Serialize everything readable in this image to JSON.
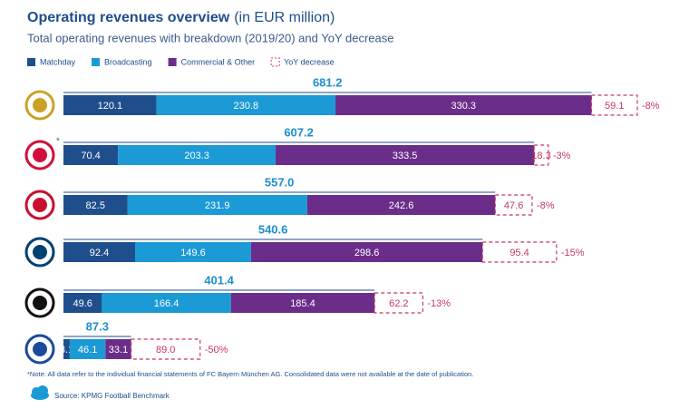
{
  "chart_data": {
    "type": "stacked_bar_horizontal",
    "title": "Operating revenues overview",
    "title_unit": "(in EUR million)",
    "subtitle": "Total operating revenues with breakdown (2019/20) and YoY decrease",
    "categories": [
      null,
      null,
      null,
      null,
      null,
      null
    ],
    "row_notes": [
      null,
      "*",
      null,
      null,
      null,
      null
    ],
    "series": [
      {
        "name": "Matchday",
        "color": "#1f4e8c",
        "values": [
          120.1,
          70.4,
          82.5,
          92.4,
          49.6,
          8.1
        ]
      },
      {
        "name": "Broadcasting",
        "color": "#1c9ad6",
        "values": [
          230.8,
          203.3,
          231.9,
          149.6,
          166.4,
          46.1
        ]
      },
      {
        "name": "Commercial & Other",
        "color": "#6b2d8a",
        "values": [
          330.3,
          333.5,
          242.6,
          298.6,
          185.4,
          33.1
        ]
      },
      {
        "name": "YoY decrease",
        "color": "#c8385f",
        "dashed": true,
        "values": [
          59.1,
          18.3,
          47.6,
          95.4,
          62.2,
          89.0
        ],
        "value_labels": [
          "59.1",
          "18.3",
          "47.6",
          "95.4",
          "62.2",
          "89.0"
        ]
      }
    ],
    "totals": {
      "values": [
        681.2,
        607.2,
        557.0,
        540.6,
        401.4,
        87.3
      ],
      "value_labels": [
        "681.2",
        "607.2",
        "557.0",
        "540.6",
        "401.4",
        "87.3"
      ]
    },
    "yoy_change": {
      "values": [
        -8,
        -3,
        -8,
        -15,
        -13,
        -50
      ],
      "value_labels": [
        "-8%",
        "-3%",
        "-8%",
        "-15%",
        "-13%",
        "-50%"
      ]
    },
    "footnote": "*Note: All data refer to the individual financial statements of FC Bayern München AG. Consolidated data were not available at the date of publication.",
    "source": "Source: KPMG Football Benchmark"
  }
}
